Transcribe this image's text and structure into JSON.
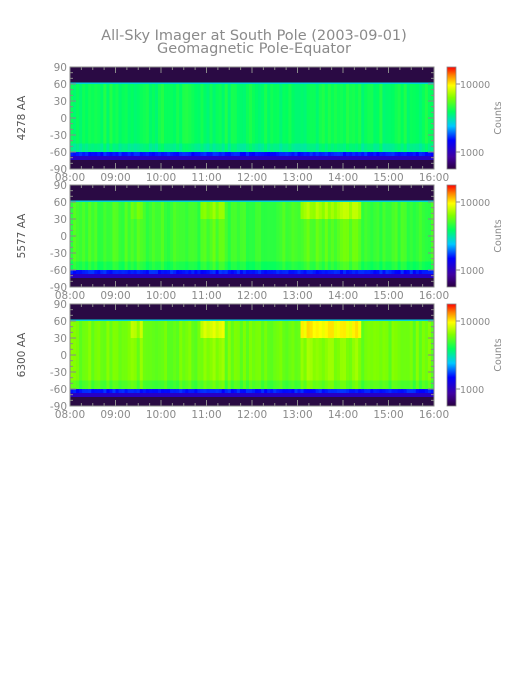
{
  "chart_data": {
    "type": "heatmap",
    "title": "All-Sky Imager at South Pole (2003-09-01)",
    "subtitle": "Geomagnetic Pole-Equator",
    "x_ticks": [
      "08:00",
      "09:00",
      "10:00",
      "11:00",
      "12:00",
      "13:00",
      "14:00",
      "15:00",
      "16:00"
    ],
    "y_ticks": [
      90,
      60,
      30,
      0,
      -30,
      -60,
      -90
    ],
    "y_range": [
      -90,
      90
    ],
    "x_range": [
      "08:00",
      "16:00"
    ],
    "colorbar": {
      "label": "Counts",
      "tick_labels": [
        "10000",
        "1000"
      ],
      "scale": "log",
      "colormap": "rainbow"
    },
    "panels": [
      {
        "ylabel": "4278 AA",
        "data_band": [
          -60,
          60
        ],
        "intensity": "low"
      },
      {
        "ylabel": "5577 AA",
        "data_band": [
          -60,
          60
        ],
        "intensity": "medium"
      },
      {
        "ylabel": "6300 AA",
        "data_band": [
          -60,
          60
        ],
        "intensity": "high"
      }
    ]
  }
}
